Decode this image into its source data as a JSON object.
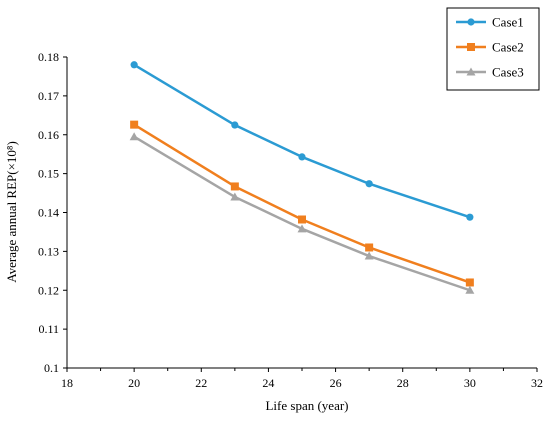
{
  "chart_data": {
    "type": "line",
    "title": "",
    "xlabel": "Life span (year)",
    "ylabel": "Average annual REP(×10⁸)",
    "xlim": [
      18,
      32
    ],
    "ylim": [
      0.1,
      0.18
    ],
    "xticks": [
      18,
      20,
      22,
      24,
      26,
      28,
      30,
      32
    ],
    "yticks": [
      0.1,
      0.11,
      0.12,
      0.13,
      0.14,
      0.15,
      0.16,
      0.17,
      0.18
    ],
    "xtick_labels": [
      "18",
      "20",
      "22",
      "24",
      "26",
      "28",
      "30",
      "32"
    ],
    "ytick_labels": [
      "0.1",
      "0.11",
      "0.12",
      "0.13",
      "0.14",
      "0.15",
      "0.16",
      "0.17",
      "0.18"
    ],
    "grid": false,
    "legend_position": "top-right",
    "x": [
      20,
      23,
      25,
      27,
      30
    ],
    "series": [
      {
        "name": "Case1",
        "color": "#2b9bd3",
        "marker": "circle",
        "values": [
          0.178,
          0.1625,
          0.1543,
          0.1474,
          0.1388
        ]
      },
      {
        "name": "Case2",
        "color": "#f07f1e",
        "marker": "square",
        "values": [
          0.1626,
          0.1467,
          0.1382,
          0.131,
          0.122
        ]
      },
      {
        "name": "Case3",
        "color": "#a5a5a5",
        "marker": "triangle",
        "values": [
          0.1595,
          0.144,
          0.1358,
          0.1288,
          0.12
        ]
      }
    ]
  }
}
